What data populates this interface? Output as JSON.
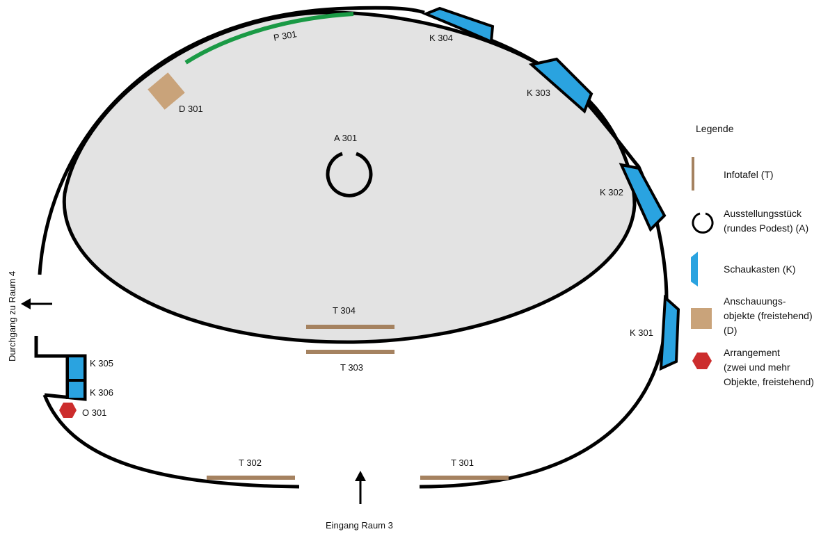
{
  "colors": {
    "wall": "#000000",
    "inner_fill": "#e3e3e3",
    "showcase": "#2aa3e0",
    "infotafel": "#a58260",
    "object": "#c9a37a",
    "arrangement": "#cc2d2d",
    "panel": "#1a9a45"
  },
  "labels": {
    "P301": "P 301",
    "K304": "K 304",
    "K303": "K 303",
    "K302": "K 302",
    "K301": "K 301",
    "K305": "K 305",
    "K306": "K 306",
    "D301": "D 301",
    "A301": "A 301",
    "T301": "T 301",
    "T302": "T 302",
    "T303": "T 303",
    "T304": "T 304",
    "O301": "O 301"
  },
  "entrance": "Eingang Raum 3",
  "passage": "Durchgang zu Raum  4",
  "legend": {
    "title": "Legende",
    "infotafel": "Infotafel (T)",
    "exhibit_line1": "Ausstellungsstück",
    "exhibit_line2": "(rundes Podest) (A)",
    "showcase": "Schaukasten (K)",
    "objects_line1": "Anschauungs-",
    "objects_line2": "objekte (freistehend)",
    "objects_line3": "(D)",
    "arrangement_line1": "Arrangement",
    "arrangement_line2": "(zwei und mehr",
    "arrangement_line3": "Objekte,  freistehend)"
  }
}
